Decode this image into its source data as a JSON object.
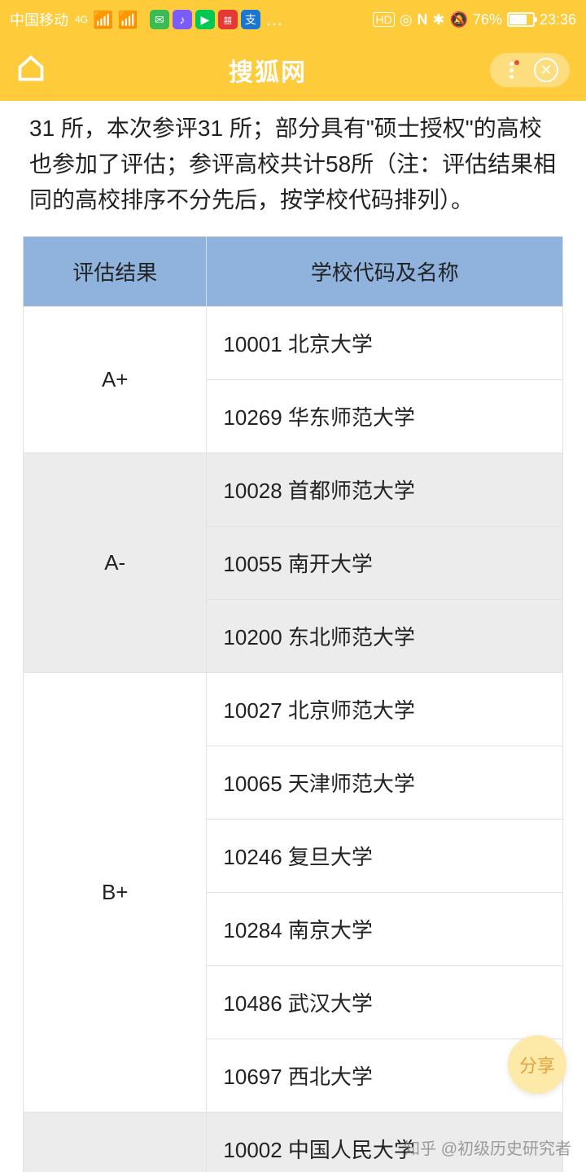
{
  "status": {
    "carrier": "中国移动",
    "network": "4G",
    "battery_pct": "76%",
    "time": "23:36",
    "indicators": {
      "hd": "HD",
      "eye": "◎",
      "nfc": "N",
      "bt": "✱",
      "dnd": "🔕"
    },
    "apps": [
      {
        "bg": "#3cba54",
        "glyph": "✉"
      },
      {
        "bg": "#7b5cff",
        "glyph": "♪"
      },
      {
        "bg": "#00c853",
        "glyph": "▶"
      },
      {
        "bg": "#e53935",
        "glyph": "囍"
      },
      {
        "bg": "#1976d2",
        "glyph": "支"
      }
    ],
    "more": "…"
  },
  "header": {
    "title": "搜狐网"
  },
  "article": {
    "paragraph": "31 所，本次参评31 所；部分具有\"硕士授权\"的高校也参加了评估；参评高校共计58所（注：评估结果相同的高校排序不分先后，按学校代码排列）。"
  },
  "table": {
    "columns": [
      "评估结果",
      "学校代码及名称"
    ],
    "header_bg": "#8fb3dd",
    "alt_bg": "#ececec",
    "groups": [
      {
        "grade": "A+",
        "alt": false,
        "schools": [
          "10001 北京大学",
          "10269 华东师范大学"
        ]
      },
      {
        "grade": "A-",
        "alt": true,
        "schools": [
          "10028 首都师范大学",
          "10055 南开大学",
          "10200 东北师范大学"
        ]
      },
      {
        "grade": "B+",
        "alt": false,
        "schools": [
          "10027 北京师范大学",
          "10065 天津师范大学",
          "10246 复旦大学",
          "10284 南京大学",
          "10486 武汉大学",
          "10697 西北大学"
        ]
      },
      {
        "grade": "",
        "alt": true,
        "schools": [
          "10002 中国人民大学"
        ]
      }
    ]
  },
  "share": {
    "label": "分享"
  },
  "watermark": "知乎 @初级历史研究者",
  "colors": {
    "brand": "#fecb3b",
    "text": "#222222"
  }
}
